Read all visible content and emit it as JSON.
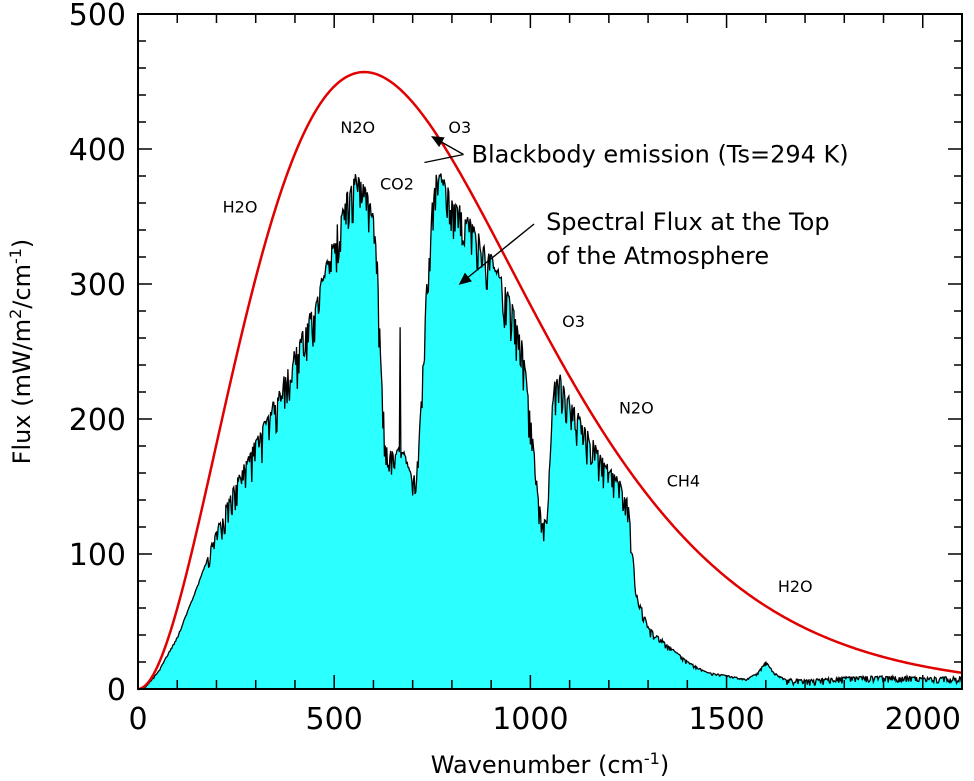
{
  "chart_data": {
    "type": "area",
    "title": "",
    "xlabel": "Wavenumber (cm",
    "xlabel_sup": "-1",
    "xlabel_end": ")",
    "ylabel": "Flux (mW/m",
    "ylabel_sup1": "2",
    "ylabel_mid": "/cm",
    "ylabel_sup2": "-1",
    "ylabel_end": ")",
    "xlim": [
      0,
      2100
    ],
    "ylim": [
      0,
      500
    ],
    "x_ticks": [
      0,
      500,
      1000,
      1500,
      2000
    ],
    "x_tick_labels": [
      "0",
      "500",
      "1000",
      "1500",
      "2000"
    ],
    "y_ticks": [
      0,
      100,
      200,
      300,
      400,
      500
    ],
    "y_tick_labels": [
      "0",
      "100",
      "200",
      "300",
      "400",
      "500"
    ],
    "series": [
      {
        "name": "Blackbody emission (Ts=294 K)",
        "kind": "line",
        "color": "#e00000",
        "temperature_K": 294
      },
      {
        "name": "Spectral Flux at the Top of the Atmosphere",
        "kind": "area",
        "fill": "#2cffff",
        "stroke": "#000000",
        "x": [
          0,
          20,
          50,
          100,
          150,
          200,
          250,
          300,
          350,
          400,
          450,
          500,
          530,
          560,
          580,
          600,
          610,
          620,
          630,
          640,
          650,
          670,
          680,
          690,
          700,
          710,
          720,
          730,
          740,
          750,
          760,
          780,
          800,
          850,
          900,
          950,
          980,
          1000,
          1020,
          1030,
          1040,
          1050,
          1060,
          1070,
          1080,
          1100,
          1150,
          1200,
          1230,
          1250,
          1260,
          1270,
          1300,
          1350,
          1400,
          1450,
          1500,
          1550,
          1580,
          1600,
          1620,
          1650,
          1700,
          1800,
          1900,
          2000,
          2100
        ],
        "values": [
          0,
          2,
          12,
          38,
          75,
          115,
          150,
          180,
          210,
          245,
          280,
          330,
          360,
          378,
          365,
          345,
          310,
          230,
          180,
          172,
          172,
          174,
          172,
          160,
          152,
          165,
          200,
          260,
          320,
          355,
          375,
          376,
          360,
          340,
          315,
          285,
          250,
          200,
          140,
          120,
          125,
          180,
          220,
          230,
          224,
          210,
          185,
          160,
          150,
          135,
          100,
          70,
          45,
          32,
          20,
          12,
          10,
          7,
          12,
          20,
          12,
          7,
          6,
          8,
          9,
          8,
          8
        ]
      }
    ],
    "gas_labels": [
      {
        "text": "H2O",
        "x": 260,
        "y": 353
      },
      {
        "text": "N2O",
        "x": 560,
        "y": 412
      },
      {
        "text": "CO2",
        "x": 660,
        "y": 370
      },
      {
        "text": "O3",
        "x": 820,
        "y": 412
      },
      {
        "text": "O3",
        "x": 1110,
        "y": 268
      },
      {
        "text": "N2O",
        "x": 1270,
        "y": 204
      },
      {
        "text": "CH4",
        "x": 1390,
        "y": 150
      },
      {
        "text": "H2O",
        "x": 1675,
        "y": 72
      }
    ],
    "annotations": [
      {
        "text": "Blackbody emission (Ts=294 K)",
        "x": 850,
        "y": 390,
        "arrow_to": [
          760,
          412
        ],
        "arrow2_to": [
          730,
          390
        ]
      },
      {
        "text": "Spectral Flux at the Top",
        "text2": "of the Atmosphere",
        "x": 1040,
        "y": 340,
        "arrow_to": [
          820,
          300
        ]
      }
    ]
  }
}
